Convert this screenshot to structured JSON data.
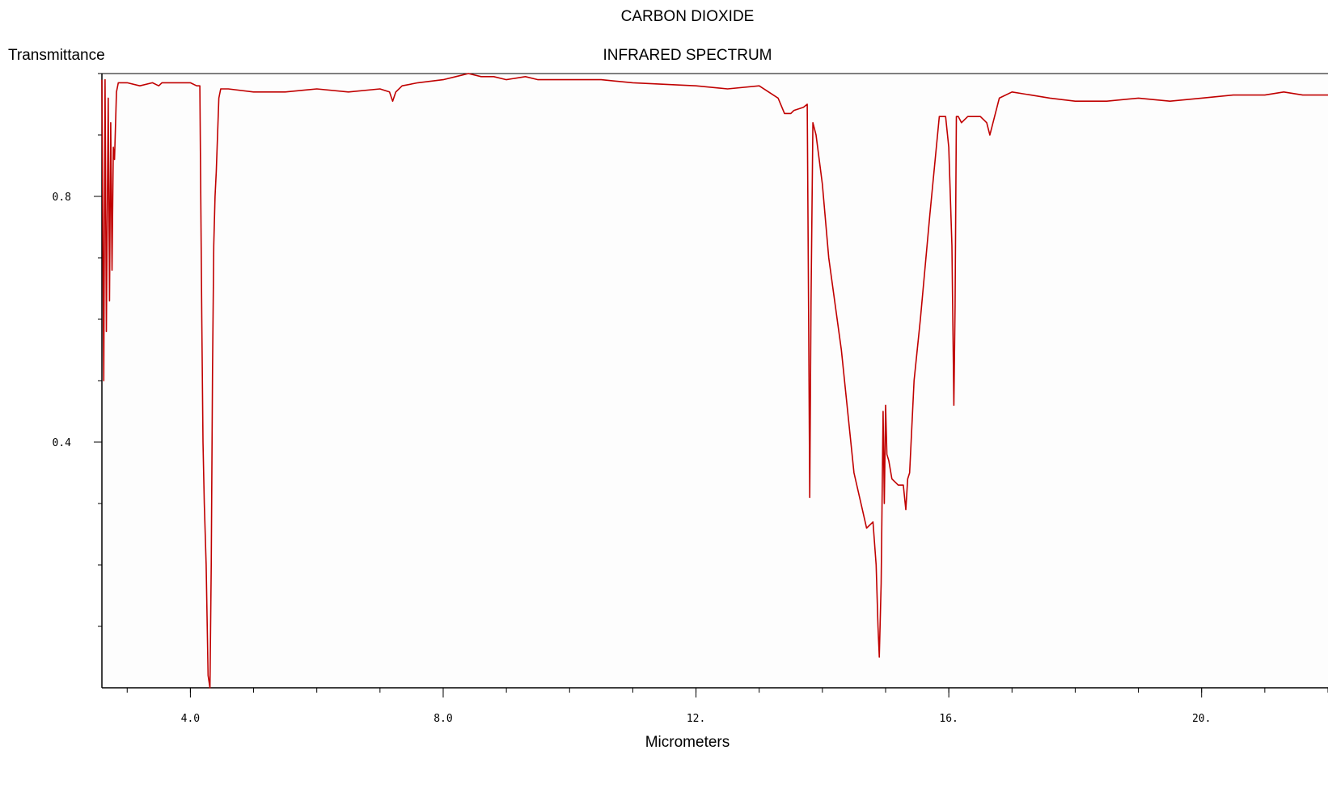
{
  "chart_data": {
    "type": "line",
    "title": "CARBON DIOXIDE",
    "subtitle": "INFRARED SPECTRUM",
    "xlabel": "Micrometers",
    "ylabel": "Transmittance",
    "xlim": [
      2.6,
      22.0
    ],
    "ylim": [
      0.0,
      1.0
    ],
    "x_ticks": [
      {
        "value": 4.0,
        "label": "4.0"
      },
      {
        "value": 8.0,
        "label": "8.0"
      },
      {
        "value": 12.0,
        "label": "12."
      },
      {
        "value": 16.0,
        "label": "16."
      },
      {
        "value": 20.0,
        "label": "20."
      }
    ],
    "x_minor_step": 1.0,
    "y_ticks": [
      {
        "value": 0.4,
        "label": "0.4"
      },
      {
        "value": 0.8,
        "label": "0.8"
      }
    ],
    "y_minor_step": 0.1,
    "grid": false,
    "line_color": "#c00000",
    "series": [
      {
        "x": [
          2.6,
          2.63,
          2.65,
          2.67,
          2.7,
          2.72,
          2.74,
          2.76,
          2.78,
          2.8,
          2.83,
          2.86,
          2.9,
          3.0,
          3.2,
          3.4,
          3.5,
          3.55,
          3.6,
          3.7,
          4.0,
          4.1,
          4.15,
          4.18,
          4.2,
          4.22,
          4.25,
          4.28,
          4.31,
          4.33,
          4.35,
          4.37,
          4.39,
          4.41,
          4.43,
          4.45,
          4.48,
          4.52,
          4.6,
          5.0,
          5.5,
          6.0,
          6.5,
          7.0,
          7.15,
          7.2,
          7.25,
          7.35,
          7.6,
          8.0,
          8.2,
          8.4,
          8.6,
          8.8,
          9.0,
          9.3,
          9.5,
          9.7,
          10.0,
          10.5,
          11.0,
          12.0,
          12.5,
          13.0,
          13.3,
          13.4,
          13.5,
          13.55,
          13.7,
          13.76,
          13.78,
          13.8,
          13.82,
          13.85,
          13.9,
          13.95,
          14.0,
          14.1,
          14.3,
          14.5,
          14.7,
          14.8,
          14.85,
          14.88,
          14.9,
          14.93,
          14.96,
          14.98,
          15.0,
          15.02,
          15.05,
          15.1,
          15.2,
          15.28,
          15.32,
          15.35,
          15.38,
          15.45,
          15.55,
          15.7,
          15.85,
          15.95,
          16.0,
          16.05,
          16.08,
          16.1,
          16.12,
          16.15,
          16.2,
          16.3,
          16.4,
          16.5,
          16.6,
          16.65,
          16.7,
          16.8,
          17.0,
          17.3,
          17.6,
          18.0,
          18.5,
          19.0,
          19.5,
          20.0,
          20.5,
          21.0,
          21.3,
          21.6,
          22.0
        ],
        "y": [
          0.99,
          0.5,
          0.99,
          0.58,
          0.96,
          0.63,
          0.92,
          0.68,
          0.88,
          0.86,
          0.97,
          0.985,
          0.985,
          0.985,
          0.98,
          0.985,
          0.98,
          0.985,
          0.985,
          0.985,
          0.985,
          0.98,
          0.98,
          0.6,
          0.4,
          0.3,
          0.2,
          0.02,
          0.0,
          0.2,
          0.52,
          0.72,
          0.8,
          0.84,
          0.9,
          0.96,
          0.975,
          0.975,
          0.975,
          0.97,
          0.97,
          0.975,
          0.97,
          0.975,
          0.97,
          0.955,
          0.97,
          0.98,
          0.985,
          0.99,
          0.995,
          1.0,
          0.995,
          0.995,
          0.99,
          0.995,
          0.99,
          0.99,
          0.99,
          0.99,
          0.985,
          0.98,
          0.975,
          0.98,
          0.96,
          0.935,
          0.935,
          0.94,
          0.945,
          0.95,
          0.63,
          0.31,
          0.63,
          0.92,
          0.9,
          0.86,
          0.82,
          0.7,
          0.55,
          0.35,
          0.26,
          0.27,
          0.2,
          0.1,
          0.05,
          0.17,
          0.45,
          0.3,
          0.46,
          0.38,
          0.37,
          0.34,
          0.33,
          0.33,
          0.29,
          0.34,
          0.35,
          0.5,
          0.6,
          0.77,
          0.93,
          0.93,
          0.88,
          0.72,
          0.46,
          0.62,
          0.93,
          0.93,
          0.92,
          0.93,
          0.93,
          0.93,
          0.92,
          0.9,
          0.92,
          0.96,
          0.97,
          0.965,
          0.96,
          0.955,
          0.955,
          0.96,
          0.955,
          0.96,
          0.965,
          0.965,
          0.97,
          0.965,
          0.965
        ]
      }
    ]
  }
}
